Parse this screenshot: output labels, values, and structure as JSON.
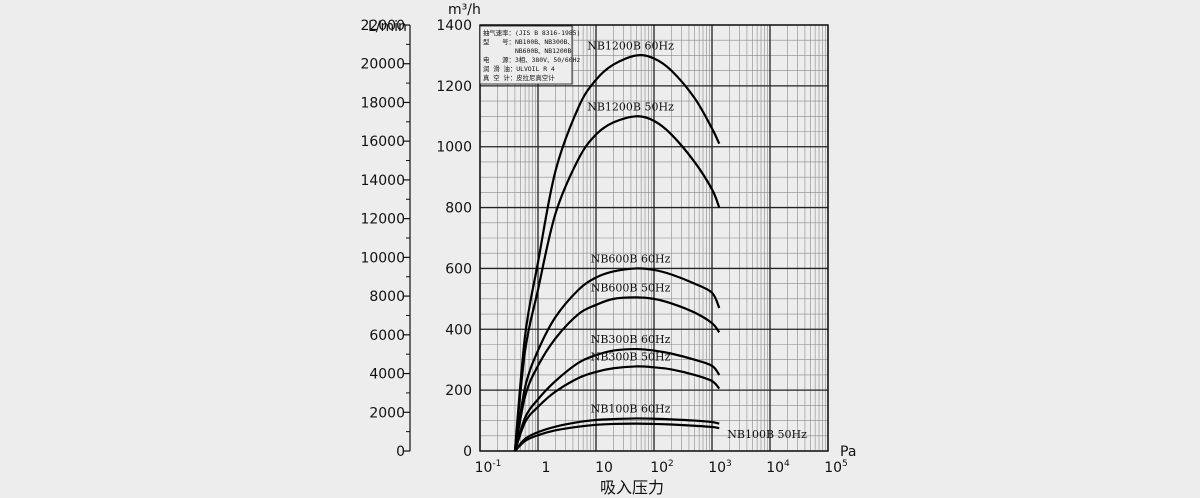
{
  "chart_data": {
    "type": "line",
    "xlabel": "吸入压力",
    "x_unit": "Pa",
    "y_unit": "m³/h",
    "y2_unit": "L/min",
    "xscale": "log",
    "xlim": [
      0.1,
      100000
    ],
    "ylim": [
      0,
      1400
    ],
    "y2lim": [
      0,
      22000
    ],
    "grid": true,
    "x_ticks": [
      {
        "base": "10",
        "exp": "-1"
      },
      {
        "base": "1",
        "exp": ""
      },
      {
        "base": "10",
        "exp": ""
      },
      {
        "base": "10",
        "exp": "2"
      },
      {
        "base": "10",
        "exp": "3"
      },
      {
        "base": "10",
        "exp": "4"
      },
      {
        "base": "10",
        "exp": "5"
      }
    ],
    "y_ticks": [
      "0",
      "200",
      "400",
      "600",
      "800",
      "1000",
      "1200",
      "1400"
    ],
    "y2_ticks": [
      "0",
      "2000",
      "4000",
      "6000",
      "8000",
      "10000",
      "12000",
      "14000",
      "16000",
      "18000",
      "20000",
      "22000"
    ],
    "legend_box": [
      "抽气速率：(JIS B 8316-1985)",
      "型　　号：NB100B、NB300B、",
      "　　　　　NB600B、NB1200B",
      "电　　源：3相、380V、50/60Hz",
      "润 滑 油：ULVOIL R 4",
      "真 空 计：皮拉尼真空计"
    ],
    "series": [
      {
        "name": "NB1200B 60Hz",
        "x": [
          0.4,
          0.6,
          1,
          2,
          5,
          10,
          20,
          50,
          100,
          200,
          500,
          1000,
          1333
        ],
        "y": [
          0,
          380,
          620,
          920,
          1130,
          1220,
          1270,
          1300,
          1290,
          1250,
          1160,
          1060,
          1010
        ]
      },
      {
        "name": "NB1200B 50Hz",
        "x": [
          0.4,
          0.6,
          1,
          2,
          5,
          10,
          20,
          50,
          100,
          200,
          500,
          1000,
          1333
        ],
        "y": [
          0,
          330,
          530,
          780,
          960,
          1040,
          1080,
          1100,
          1085,
          1040,
          950,
          860,
          800
        ]
      },
      {
        "name": "NB600B 60Hz",
        "x": [
          0.4,
          0.6,
          1,
          2,
          5,
          10,
          20,
          50,
          100,
          200,
          500,
          1000,
          1333
        ],
        "y": [
          0,
          210,
          330,
          440,
          530,
          570,
          590,
          600,
          595,
          580,
          550,
          520,
          470
        ]
      },
      {
        "name": "NB600B 50Hz",
        "x": [
          0.4,
          0.6,
          1,
          2,
          5,
          10,
          20,
          50,
          100,
          200,
          500,
          1000,
          1333
        ],
        "y": [
          0,
          180,
          280,
          370,
          450,
          480,
          500,
          505,
          500,
          485,
          455,
          420,
          390
        ]
      },
      {
        "name": "NB300B 60Hz",
        "x": [
          0.4,
          0.6,
          1,
          2,
          5,
          10,
          20,
          50,
          100,
          200,
          500,
          1000,
          1333
        ],
        "y": [
          0,
          110,
          170,
          230,
          290,
          315,
          330,
          335,
          330,
          320,
          300,
          280,
          250
        ]
      },
      {
        "name": "NB300B 50Hz",
        "x": [
          0.4,
          0.6,
          1,
          2,
          5,
          10,
          20,
          50,
          100,
          200,
          500,
          1000,
          1333
        ],
        "y": [
          0,
          95,
          145,
          195,
          240,
          260,
          272,
          278,
          275,
          268,
          250,
          230,
          205
        ]
      },
      {
        "name": "NB100B 60Hz",
        "x": [
          0.4,
          0.6,
          1,
          2,
          5,
          10,
          20,
          50,
          100,
          200,
          500,
          1000,
          1333
        ],
        "y": [
          0,
          40,
          62,
          80,
          95,
          102,
          105,
          107,
          106,
          104,
          100,
          95,
          90
        ]
      },
      {
        "name": "NB100B 50Hz",
        "x": [
          0.4,
          0.6,
          1,
          2,
          5,
          10,
          20,
          50,
          100,
          200,
          500,
          1000,
          1333
        ],
        "y": [
          0,
          33,
          52,
          68,
          80,
          86,
          89,
          90,
          89,
          87,
          83,
          79,
          75
        ]
      }
    ]
  }
}
